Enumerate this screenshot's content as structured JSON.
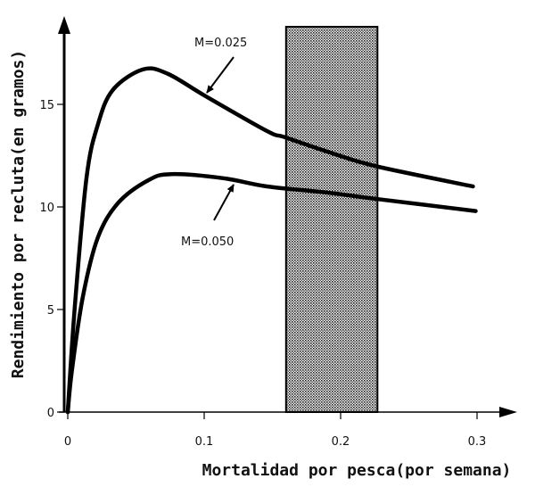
{
  "chart_data": {
    "type": "line",
    "title": "",
    "xlabel": "Mortalidad por pesca(por semana)",
    "ylabel": "Rendimiento por recluta(en gramos)",
    "xlim": [
      0,
      0.33
    ],
    "ylim": [
      0,
      19
    ],
    "x_ticks": [
      "0",
      "0.1",
      "0.2",
      "0.3"
    ],
    "x_tick_values": [
      0,
      0.1,
      0.2,
      0.3
    ],
    "y_ticks": [
      "0",
      "5",
      "10",
      "15"
    ],
    "y_tick_values": [
      0,
      5,
      10,
      15
    ],
    "grid": false,
    "shaded_region": {
      "x": [
        0.16,
        0.227
      ],
      "pattern": "dotted"
    },
    "series": [
      {
        "name": "M=0.025",
        "points": [
          [
            0,
            0
          ],
          [
            0.005,
            5
          ],
          [
            0.0137,
            11.4
          ],
          [
            0.022,
            14.0
          ],
          [
            0.033,
            15.7
          ],
          [
            0.055,
            16.7
          ],
          [
            0.073,
            16.5
          ],
          [
            0.101,
            15.4
          ],
          [
            0.146,
            13.7
          ],
          [
            0.159,
            13.4
          ],
          [
            0.19,
            12.7
          ],
          [
            0.225,
            12.0
          ],
          [
            0.297,
            11.0
          ]
        ]
      },
      {
        "name": "M=0.050",
        "points": [
          [
            0,
            0
          ],
          [
            0.003,
            2.0
          ],
          [
            0.011,
            5.6
          ],
          [
            0.022,
            8.5
          ],
          [
            0.037,
            10.2
          ],
          [
            0.059,
            11.3
          ],
          [
            0.076,
            11.6
          ],
          [
            0.114,
            11.4
          ],
          [
            0.146,
            11.0
          ],
          [
            0.19,
            10.7
          ],
          [
            0.225,
            10.4
          ],
          [
            0.299,
            9.8
          ]
        ]
      }
    ],
    "annotations": [
      {
        "text": "M=0.025",
        "series": 0
      },
      {
        "text": "M=0.050",
        "series": 1
      }
    ],
    "colors": {
      "line": "#000000",
      "background": "#ffffff"
    }
  }
}
